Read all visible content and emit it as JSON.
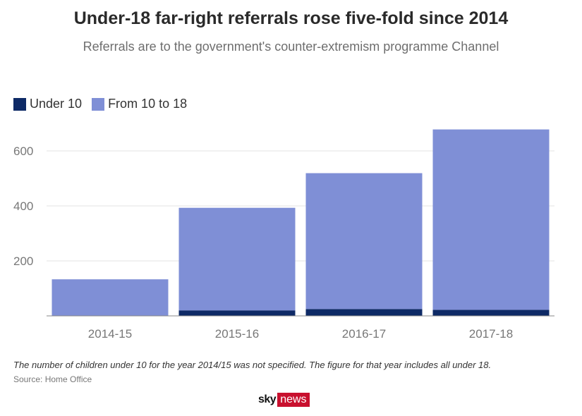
{
  "title": "Under-18 far-right referrals rose five-fold since 2014",
  "subtitle": "Referrals are to the government's counter-extremism programme Channel",
  "footnote": "The number of children under 10 for the year 2014/15 was not specified. The figure for that year includes all under 18.",
  "source": "Source: Home Office",
  "logo": {
    "sky": "sky",
    "news": "news"
  },
  "colors": {
    "under10": "#0e2a66",
    "from10to18": "#7f8fd6",
    "grid": "#e3e3e3",
    "axis": "#888888"
  },
  "chart_data": {
    "type": "bar",
    "stacked": true,
    "categories": [
      "2014-15",
      "2015-16",
      "2016-17",
      "2017-18"
    ],
    "series": [
      {
        "name": "Under 10",
        "values": [
          0,
          20,
          25,
          22
        ]
      },
      {
        "name": "From 10 to 18",
        "values": [
          133,
          373,
          494,
          656
        ]
      }
    ],
    "ylim": [
      0,
      700
    ],
    "yticks": [
      200,
      400,
      600
    ],
    "grid": true,
    "legend": "top-left"
  }
}
